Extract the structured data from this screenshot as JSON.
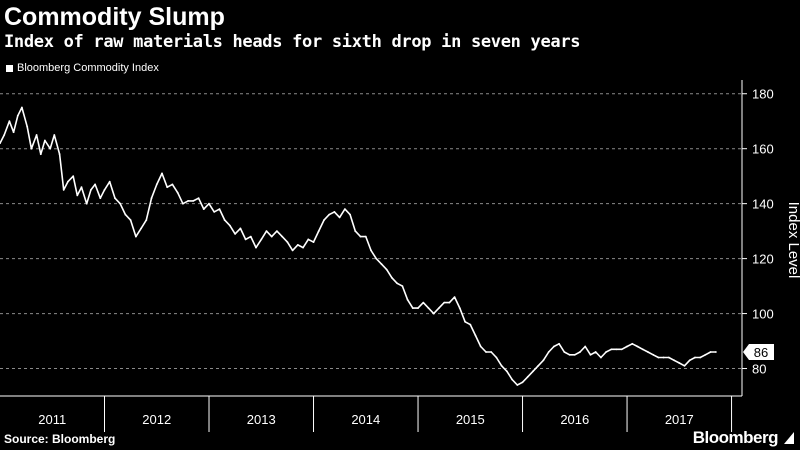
{
  "header": {
    "title": "Commodity Slump",
    "subtitle": "Index of raw materials heads for sixth drop in seven years"
  },
  "legend": {
    "label": "Bloomberg Commodity Index"
  },
  "footer": {
    "source": "Source: Bloomberg",
    "brand": "Bloomberg"
  },
  "colors": {
    "background": "#000000",
    "line": "#ffffff",
    "grid": "#8a8a8a"
  },
  "chart_data": {
    "type": "line",
    "title": "Commodity Slump",
    "subtitle": "Index of raw materials heads for sixth drop in seven years",
    "ylabel": "Index Level",
    "xlabel": "",
    "ylim": [
      70,
      185
    ],
    "xlim": [
      2011.0,
      2018.1
    ],
    "yticks": [
      80,
      100,
      120,
      140,
      160,
      180
    ],
    "xticks": [
      "2011",
      "2012",
      "2013",
      "2014",
      "2015",
      "2016",
      "2017"
    ],
    "xtick_positions": [
      2011,
      2012,
      2013,
      2014,
      2015,
      2016,
      2017,
      2018
    ],
    "grid": "horizontal-dashed",
    "legend_position": "top-left",
    "last_value_label": "86",
    "series": [
      {
        "name": "Bloomberg Commodity Index",
        "x": [
          2011.0,
          2011.04,
          2011.09,
          2011.13,
          2011.17,
          2011.21,
          2011.26,
          2011.3,
          2011.35,
          2011.39,
          2011.43,
          2011.48,
          2011.52,
          2011.57,
          2011.61,
          2011.65,
          2011.7,
          2011.74,
          2011.78,
          2011.83,
          2011.87,
          2011.91,
          2011.96,
          2012.0,
          2012.05,
          2012.1,
          2012.15,
          2012.2,
          2012.25,
          2012.3,
          2012.35,
          2012.4,
          2012.45,
          2012.5,
          2012.55,
          2012.6,
          2012.65,
          2012.7,
          2012.75,
          2012.8,
          2012.85,
          2012.9,
          2012.95,
          2013.0,
          2013.05,
          2013.1,
          2013.15,
          2013.2,
          2013.25,
          2013.3,
          2013.35,
          2013.4,
          2013.45,
          2013.5,
          2013.55,
          2013.6,
          2013.65,
          2013.7,
          2013.75,
          2013.8,
          2013.85,
          2013.9,
          2013.95,
          2014.0,
          2014.05,
          2014.1,
          2014.15,
          2014.2,
          2014.25,
          2014.3,
          2014.35,
          2014.4,
          2014.45,
          2014.5,
          2014.55,
          2014.6,
          2014.65,
          2014.7,
          2014.75,
          2014.8,
          2014.85,
          2014.9,
          2014.95,
          2015.0,
          2015.05,
          2015.1,
          2015.15,
          2015.2,
          2015.25,
          2015.3,
          2015.35,
          2015.4,
          2015.45,
          2015.5,
          2015.55,
          2015.6,
          2015.65,
          2015.7,
          2015.75,
          2015.8,
          2015.85,
          2015.9,
          2015.95,
          2016.0,
          2016.05,
          2016.1,
          2016.15,
          2016.2,
          2016.25,
          2016.3,
          2016.35,
          2016.4,
          2016.45,
          2016.5,
          2016.55,
          2016.6,
          2016.65,
          2016.7,
          2016.75,
          2016.8,
          2016.85,
          2016.9,
          2016.95,
          2017.0,
          2017.05,
          2017.1,
          2017.15,
          2017.2,
          2017.25,
          2017.3,
          2017.35,
          2017.4,
          2017.45,
          2017.5,
          2017.55,
          2017.6,
          2017.65,
          2017.7,
          2017.75,
          2017.8,
          2017.85
        ],
        "values": [
          162,
          165,
          170,
          166,
          172,
          175,
          168,
          160,
          165,
          158,
          163,
          160,
          165,
          158,
          145,
          148,
          150,
          143,
          146,
          140,
          145,
          147,
          142,
          145,
          148,
          142,
          140,
          136,
          134,
          128,
          131,
          134,
          142,
          147,
          151,
          146,
          147,
          144,
          140,
          141,
          141,
          142,
          138,
          140,
          137,
          138,
          134,
          132,
          129,
          131,
          127,
          128,
          124,
          127,
          130,
          128,
          130,
          128,
          126,
          123,
          125,
          124,
          127,
          126,
          130,
          134,
          136,
          137,
          135,
          138,
          136,
          130,
          128,
          128,
          123,
          120,
          118,
          116,
          113,
          111,
          110,
          105,
          102,
          102,
          104,
          102,
          100,
          102,
          104,
          104,
          106,
          102,
          97,
          96,
          92,
          88,
          86,
          86,
          84,
          81,
          79,
          76,
          74,
          75,
          77,
          79,
          81,
          83,
          86,
          88,
          89,
          86,
          85,
          85,
          86,
          88,
          85,
          86,
          84,
          86,
          87,
          87,
          87,
          88,
          89,
          88,
          87,
          86,
          85,
          84,
          84,
          84,
          83,
          82,
          81,
          83,
          84,
          84,
          85,
          86,
          86
        ]
      }
    ]
  }
}
